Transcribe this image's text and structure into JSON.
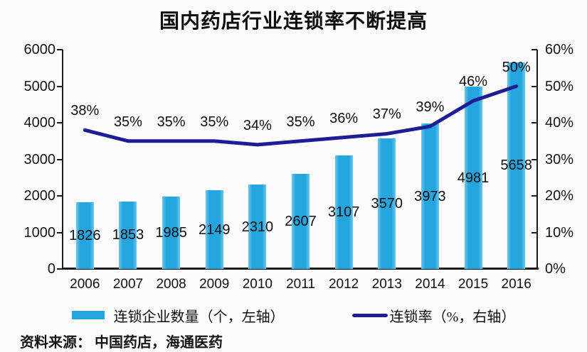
{
  "title": "国内药店行业连锁率不断提高",
  "source": "资料来源： 中国药店，海通医药",
  "colors": {
    "bar": "#25a5de",
    "line": "#1d1d96",
    "axis": "#1a1a1a",
    "text": "#0d0d0d"
  },
  "legend": [
    {
      "label": "连锁企业数量（个，左轴）",
      "swatch": "bar"
    },
    {
      "label": "连锁率（%，右轴）",
      "swatch": "line"
    }
  ],
  "chart_data": {
    "type": "bar+line",
    "title": "国内药店行业连锁率不断提高",
    "categories": [
      "2006",
      "2007",
      "2008",
      "2009",
      "2010",
      "2011",
      "2012",
      "2013",
      "2014",
      "2015",
      "2016"
    ],
    "series": [
      {
        "name": "连锁企业数量（个，左轴）",
        "type": "bar",
        "axis": "left",
        "color": "#25a5de",
        "values": [
          1826,
          1853,
          1985,
          2149,
          2310,
          2607,
          3107,
          3570,
          3973,
          4981,
          5658
        ]
      },
      {
        "name": "连锁率（%，右轴）",
        "type": "line",
        "axis": "right",
        "color": "#1d1d96",
        "values": [
          38,
          35,
          35,
          35,
          34,
          35,
          36,
          37,
          39,
          46,
          50
        ]
      }
    ],
    "bar_value_labels": [
      "1826",
      "1853",
      "1985",
      "2149",
      "2310",
      "2607",
      "3107",
      "3570",
      "3973",
      "4981",
      "5658"
    ],
    "line_value_labels": [
      "38%",
      "35%",
      "35%",
      "35%",
      "34%",
      "35%",
      "36%",
      "37%",
      "39%",
      "46%",
      "50%"
    ],
    "left_axis": {
      "min": 0,
      "max": 6000,
      "step": 1000,
      "tick_labels": [
        "0",
        "1000",
        "2000",
        "3000",
        "4000",
        "5000",
        "6000"
      ]
    },
    "right_axis": {
      "min": 0,
      "max": 60,
      "step": 10,
      "tick_labels": [
        "0%",
        "10%",
        "20%",
        "30%",
        "40%",
        "50%",
        "60%"
      ]
    },
    "grid": false,
    "legend_position": "bottom"
  }
}
